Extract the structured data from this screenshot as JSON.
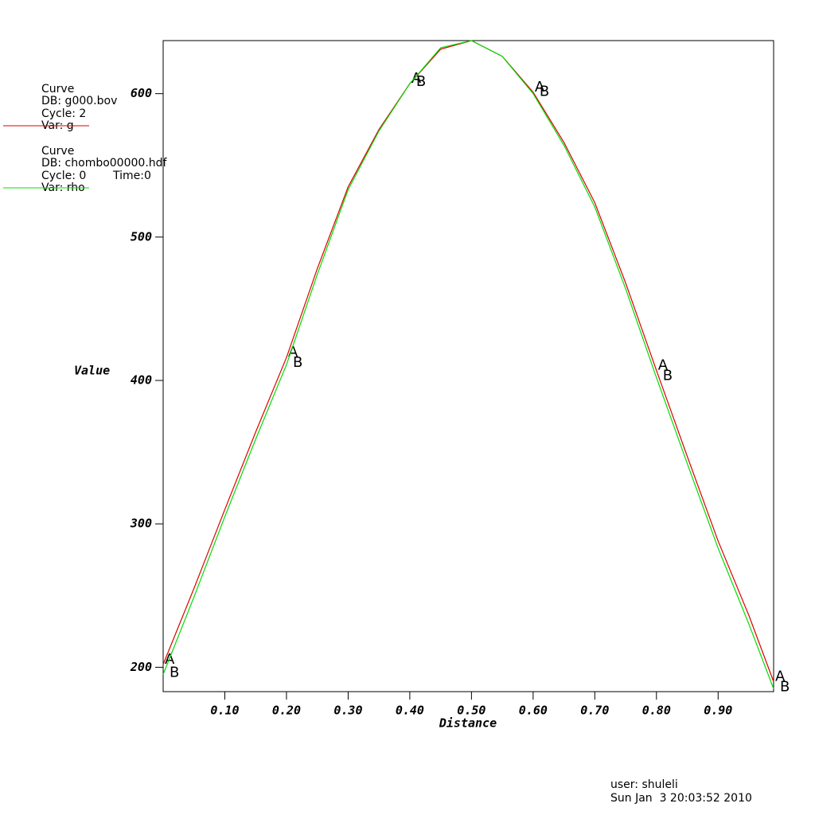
{
  "chart_data": {
    "type": "line",
    "xlabel": "Distance",
    "ylabel": "Value",
    "x": [
      0,
      0.05,
      0.1,
      0.15,
      0.2,
      0.25,
      0.3,
      0.35,
      0.4,
      0.45,
      0.5,
      0.55,
      0.6,
      0.65,
      0.7,
      0.75,
      0.8,
      0.85,
      0.9,
      0.95,
      0.99
    ],
    "series": [
      {
        "heading": "Curve",
        "db": "DB: g000.bov",
        "cycle": "Cycle: 2",
        "name": "Var: g",
        "marker": "A",
        "color": "#dd0000",
        "values": [
          202,
          255,
          310,
          364,
          416,
          478,
          535,
          575,
          607,
          631,
          637,
          626,
          601,
          566,
          524,
          468,
          407,
          347,
          288,
          236,
          190
        ]
      },
      {
        "heading": "Curve",
        "db": "DB: chombo00000.hdf",
        "cycle": "Cycle: 0",
        "time": "Time:0",
        "name": "Var: rho",
        "marker": "B",
        "color": "#00dd00",
        "values": [
          195,
          249,
          305,
          359,
          411,
          474,
          533,
          574,
          607,
          632,
          637,
          626,
          600,
          564,
          521,
          464,
          402,
          342,
          283,
          230,
          185
        ]
      }
    ],
    "xlim": [
      0,
      0.99
    ],
    "ylim": [
      183,
      637
    ],
    "xticks": [
      {
        "value": 0.1,
        "label": "0.10"
      },
      {
        "value": 0.2,
        "label": "0.20"
      },
      {
        "value": 0.3,
        "label": "0.30"
      },
      {
        "value": 0.4,
        "label": "0.40"
      },
      {
        "value": 0.5,
        "label": "0.50"
      },
      {
        "value": 0.6,
        "label": "0.60"
      },
      {
        "value": 0.7,
        "label": "0.70"
      },
      {
        "value": 0.8,
        "label": "0.80"
      },
      {
        "value": 0.9,
        "label": "0.90"
      }
    ],
    "yticks": [
      200,
      300,
      400,
      500,
      600
    ],
    "user": "user: shuleli",
    "date": "Sun Jan  3 20:03:52 2010"
  }
}
